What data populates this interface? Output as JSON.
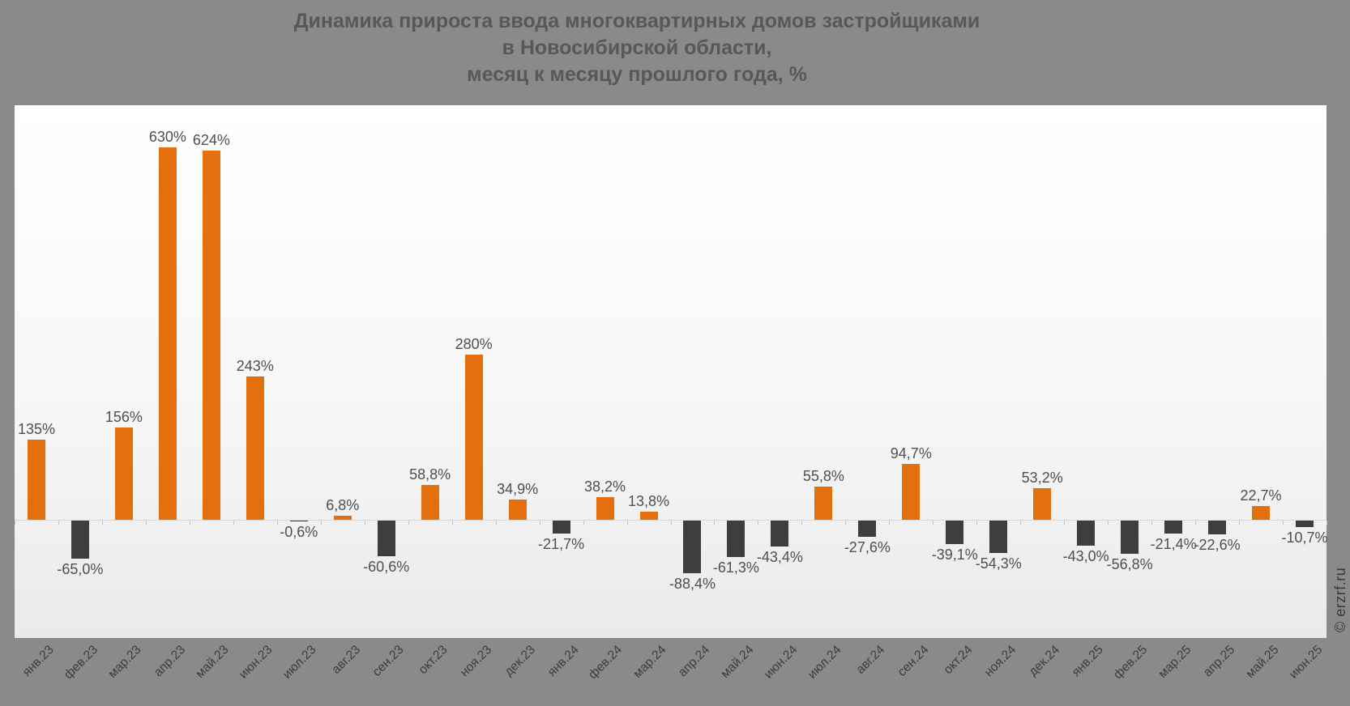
{
  "title": {
    "line1": "Динамика прироста ввода многоквартирных домов застройщиками",
    "line2": "в Новосибирской области,",
    "line3": "месяц к месяцу прошлого года, %"
  },
  "watermark": "© erzrf.ru",
  "colors": {
    "page_background": "#8a8a8a",
    "positive_bar": "#e36f0d",
    "negative_bar": "#3e3e3e",
    "title_text": "#58585a",
    "value_label_text": "#4f4f4f",
    "axis_label_text": "#3c3c3c",
    "axis_line": "#d8d8d8",
    "plot_background_top": "#ffffff",
    "plot_background_bottom": "#eaeaea"
  },
  "chart_data": {
    "type": "bar",
    "title": "Динамика прироста ввода многоквартирных домов застройщиками в Новосибирской области, месяц к месяцу прошлого года, %",
    "xlabel": "",
    "ylabel": "",
    "grid": false,
    "legend": false,
    "ylim": [
      -105,
      660
    ],
    "value_label_position": "outside-end",
    "categories": [
      "янв.23",
      "фев.23",
      "мар.23",
      "апр.23",
      "май.23",
      "июн.23",
      "июл.23",
      "авг.23",
      "сен.23",
      "окт.23",
      "ноя.23",
      "дек.23",
      "янв.24",
      "фев.24",
      "мар.24",
      "апр.24",
      "май.24",
      "июн.24",
      "июл.24",
      "авг.24",
      "сен.24",
      "окт.24",
      "ноя.24",
      "дек.24",
      "янв.25",
      "фев.25",
      "мар.25",
      "апр.25",
      "май.25",
      "июн.25"
    ],
    "values": [
      135,
      -65.0,
      156,
      630,
      624,
      243,
      -0.6,
      6.8,
      -60.6,
      58.8,
      280,
      34.9,
      -21.7,
      38.2,
      13.8,
      -88.4,
      -61.3,
      -43.4,
      55.8,
      -27.6,
      94.7,
      -39.1,
      -54.3,
      53.2,
      -43.0,
      -56.8,
      -21.4,
      -22.6,
      22.7,
      -10.7
    ],
    "value_labels": [
      "135%",
      "-65,0%",
      "156%",
      "630%",
      "624%",
      "243%",
      "-0,6%",
      "6,8%",
      "-60,6%",
      "58,8%",
      "280%",
      "34,9%",
      "-21,7%",
      "38,2%",
      "13,8%",
      "-88,4%",
      "-61,3%",
      "-43,4%",
      "55,8%",
      "-27,6%",
      "94,7%",
      "-39,1%",
      "-54,3%",
      "53,2%",
      "-43,0%",
      "-56,8%",
      "-21,4%",
      "-22,6%",
      "22,7%",
      "-10,7%"
    ],
    "series_colors": {
      "positive": "#e36f0d",
      "negative": "#3e3e3e"
    }
  }
}
